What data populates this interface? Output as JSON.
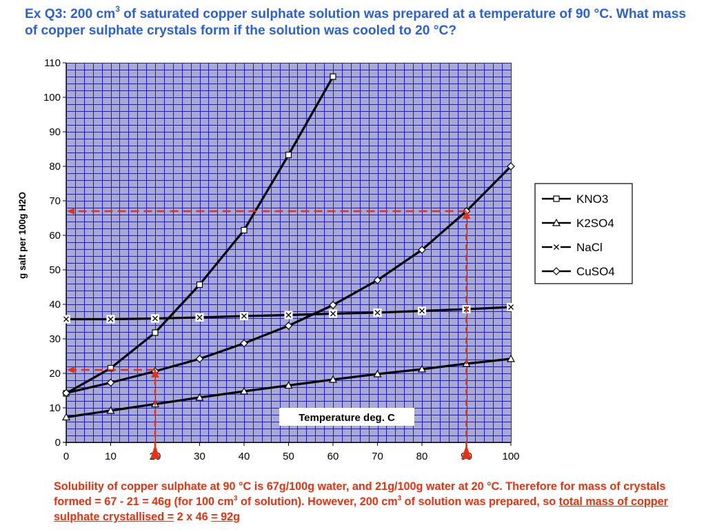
{
  "question": {
    "part1": "Ex Q3: 200 cm",
    "sup1": "3",
    "part2": " of saturated copper sulphate solution was prepared at a temperature of 90 °C. What mass of copper sulphate crystals form if the solution was cooled to 20 °C?"
  },
  "explanation": {
    "line_a": "Solubility of copper sulphate at 90 °C is 67g/100g water, and 21g/100g water at 20 °C. Therefore for mass of crystals formed = 67 - 21 = 46g (for 100 cm",
    "sup_a": "3",
    "line_b": " of solution).  However, 200 cm",
    "sup_b": "3",
    "line_c": " of solution was prepared, so ",
    "underline1": "total mass of copper sulphate crystallised =",
    "mid": " 2 x 46 ",
    "underline2": "= 92g"
  },
  "colors": {
    "question_text": "#2a61d6",
    "explanation_text": "#e8320f",
    "plot_background": "#a9a9d6",
    "grid": "#1a1ad6",
    "series_line": "#000000",
    "annotation": "#e8320f"
  },
  "chart_data": {
    "type": "line",
    "title": "",
    "xlabel": "Temperature deg. C",
    "ylabel": "g salt per 100g H2O",
    "xlim": [
      0,
      100
    ],
    "ylim": [
      0,
      110
    ],
    "xticks": [
      0,
      10,
      20,
      30,
      40,
      50,
      60,
      70,
      80,
      90,
      100
    ],
    "yticks": [
      0,
      10,
      20,
      30,
      40,
      50,
      60,
      70,
      80,
      90,
      100,
      110
    ],
    "grid": true,
    "legend": "right",
    "series": [
      {
        "name": "KNO3",
        "marker": "square",
        "x": [
          0,
          10,
          20,
          30,
          40,
          50,
          60
        ],
        "y": [
          14.2,
          21.5,
          31.8,
          45.7,
          61.5,
          83.3,
          106
        ]
      },
      {
        "name": "K2SO4",
        "marker": "triangle",
        "x": [
          0,
          10,
          20,
          30,
          40,
          50,
          60,
          70,
          80,
          90,
          100
        ],
        "y": [
          7.3,
          9.2,
          11.1,
          13.0,
          14.8,
          16.5,
          18.2,
          19.8,
          21.2,
          22.8,
          24.2
        ]
      },
      {
        "name": "NaCl",
        "marker": "x",
        "x": [
          0,
          10,
          20,
          30,
          40,
          50,
          60,
          70,
          80,
          90,
          100
        ],
        "y": [
          35.7,
          35.7,
          35.9,
          36.2,
          36.6,
          36.9,
          37.3,
          37.6,
          38.1,
          38.6,
          39.2
        ]
      },
      {
        "name": "CuSO4",
        "marker": "diamond",
        "x": [
          0,
          10,
          20,
          30,
          40,
          50,
          60,
          70,
          80,
          90,
          100
        ],
        "y": [
          14.3,
          17.3,
          20.6,
          24.2,
          28.7,
          33.8,
          39.8,
          47.0,
          55.8,
          67.0,
          80.0
        ]
      }
    ],
    "annotations": [
      {
        "type": "guide",
        "x": 90,
        "y": 67
      },
      {
        "type": "guide",
        "x": 20,
        "y": 21
      }
    ]
  }
}
